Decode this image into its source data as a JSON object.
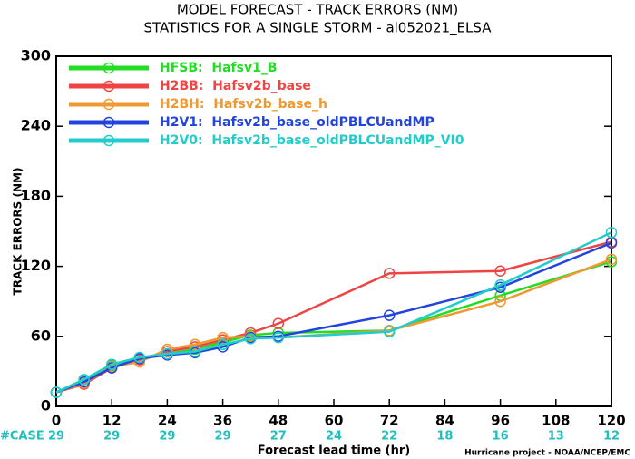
{
  "chart_data": {
    "type": "line",
    "title": "MODEL FORECAST - TRACK ERRORS (NM)",
    "subtitle": "STATISTICS FOR A SINGLE STORM - al052021_ELSA",
    "y_label": "TRACK ERRORS (NM)",
    "x_label": "Forecast lead time (hr)",
    "footer": "Hurricane project - NOAA/NCEP/EMC",
    "case_label": "#CASE",
    "case_x": [
      0,
      12,
      24,
      36,
      48,
      60,
      72,
      84,
      96,
      108,
      120
    ],
    "case_counts": [
      29,
      29,
      29,
      29,
      27,
      24,
      22,
      18,
      16,
      13,
      12
    ],
    "case_color": "#1fbfbf",
    "x": [
      0,
      6,
      12,
      18,
      24,
      30,
      36,
      42,
      48,
      72,
      96,
      120
    ],
    "series": [
      {
        "name": "HFSB:  Hafsv1_B",
        "color": "#22dd22",
        "values": [
          12,
          23,
          35,
          41,
          45,
          49,
          55,
          61,
          63,
          65,
          95,
          124
        ]
      },
      {
        "name": "H2BB:  Hafsv2b_base",
        "color": "#ee4444",
        "values": [
          12,
          19,
          33,
          40,
          47,
          51,
          57,
          63,
          71,
          114,
          116,
          141
        ]
      },
      {
        "name": "H2BH:  Hafsv2b_base_h",
        "color": "#ee9933",
        "values": [
          12,
          20,
          34,
          38,
          49,
          53,
          59,
          60,
          59,
          65,
          90,
          126
        ]
      },
      {
        "name": "H2V1:  Hafsv2b_base_oldPBLCUandMP",
        "color": "#2244dd",
        "values": [
          12,
          21,
          33,
          41,
          44,
          46,
          51,
          59,
          60,
          78,
          102,
          140
        ]
      },
      {
        "name": "H2V0:  Hafsv2b_base_oldPBLCUandMP_VI0",
        "color": "#22cccc",
        "values": [
          12,
          23,
          36,
          42,
          45,
          47,
          53,
          58,
          59,
          64,
          104,
          149
        ]
      }
    ],
    "xlim": [
      0,
      120
    ],
    "xticks": [
      0,
      12,
      24,
      36,
      48,
      60,
      72,
      84,
      96,
      108,
      120
    ],
    "ylim": [
      0,
      300
    ],
    "yticks": [
      0,
      60,
      120,
      180,
      240,
      300
    ],
    "legend": "upper left"
  }
}
